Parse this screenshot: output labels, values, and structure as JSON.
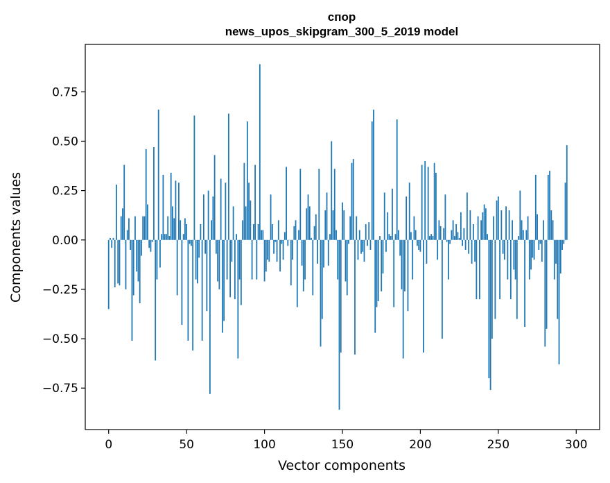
{
  "chart_data": {
    "type": "bar",
    "title": "спор",
    "subtitle": "news_upos_skipgram_300_5_2019 model",
    "xlabel": "Vector components",
    "ylabel": "Components values",
    "xlim": [
      -15,
      315
    ],
    "ylim": [
      -0.96,
      0.99
    ],
    "x_ticks": [
      0,
      50,
      100,
      150,
      200,
      250,
      300
    ],
    "y_ticks": [
      0.75,
      0.5,
      0.25,
      0.0,
      -0.25,
      -0.5,
      -0.75
    ],
    "y_tick_labels": [
      "0.75",
      "0.50",
      "0.25",
      "0.00",
      "−0.25",
      "−0.50",
      "−0.75"
    ],
    "grid": false,
    "bar_color": "#1f77b4",
    "values": [
      -0.35,
      0.01,
      -0.04,
      0.01,
      -0.24,
      0.28,
      -0.22,
      -0.23,
      0.12,
      0.16,
      0.38,
      -0.25,
      0.05,
      0.11,
      -0.05,
      -0.51,
      -0.28,
      0.12,
      -0.16,
      -0.21,
      -0.32,
      -0.08,
      0.12,
      0.12,
      0.46,
      0.18,
      -0.04,
      -0.06,
      -0.01,
      0.47,
      -0.61,
      -0.2,
      0.66,
      -0.14,
      0.03,
      0.33,
      0.03,
      0.03,
      0.12,
      0.02,
      0.34,
      0.17,
      0.11,
      0.3,
      -0.28,
      0.29,
      0.1,
      -0.43,
      0.03,
      0.11,
      0.08,
      -0.51,
      -0.02,
      -0.03,
      -0.56,
      0.63,
      -0.2,
      -0.22,
      -0.09,
      0.08,
      -0.51,
      0.23,
      -0.07,
      -0.36,
      0.25,
      -0.78,
      0.1,
      0.22,
      0.43,
      -0.07,
      -0.21,
      -0.25,
      0.31,
      -0.47,
      -0.41,
      0.29,
      -0.2,
      0.64,
      -0.29,
      -0.11,
      0.17,
      -0.3,
      0.03,
      -0.6,
      -0.2,
      -0.33,
      0.1,
      0.39,
      0.17,
      0.6,
      0.29,
      0.2,
      -0.2,
      0.08,
      0.38,
      -0.2,
      0.08,
      0.89,
      0.05,
      0.05,
      -0.21,
      -0.16,
      -0.1,
      -0.11,
      0.23,
      0.08,
      -0.07,
      -0.01,
      -0.11,
      0.1,
      -0.16,
      -0.02,
      -0.1,
      0.04,
      0.37,
      -0.03,
      0.0,
      -0.23,
      -0.1,
      0.07,
      0.1,
      -0.34,
      0.05,
      0.36,
      -0.13,
      -0.26,
      -0.2,
      0.16,
      0.23,
      0.17,
      0.01,
      -0.28,
      0.07,
      0.13,
      -0.12,
      0.36,
      -0.54,
      -0.4,
      -0.14,
      0.15,
      0.24,
      -0.13,
      0.03,
      0.5,
      0.15,
      0.36,
      0.05,
      -0.2,
      -0.86,
      -0.57,
      0.19,
      0.15,
      -0.21,
      -0.28,
      -0.02,
      0.12,
      0.39,
      0.41,
      -0.58,
      0.12,
      -0.1,
      0.05,
      -0.07,
      -0.06,
      -0.11,
      0.08,
      -0.03,
      0.09,
      -0.05,
      0.6,
      0.66,
      -0.47,
      -0.34,
      -0.31,
      0.02,
      -0.26,
      -0.17,
      0.24,
      -0.06,
      0.14,
      0.03,
      0.02,
      0.26,
      -0.34,
      0.03,
      0.61,
      0.05,
      -0.08,
      -0.25,
      -0.6,
      -0.26,
      0.22,
      -0.36,
      0.29,
      0.04,
      -0.2,
      0.12,
      0.05,
      -0.03,
      -0.05,
      -0.06,
      0.38,
      -0.57,
      0.4,
      -0.12,
      0.37,
      0.02,
      0.03,
      0.02,
      0.39,
      0.34,
      -0.1,
      0.1,
      0.07,
      -0.5,
      0.06,
      0.23,
      -0.01,
      -0.2,
      -0.02,
      0.05,
      0.1,
      0.02,
      0.08,
      0.04,
      0.01,
      0.14,
      -0.03,
      0.06,
      -0.05,
      0.24,
      -0.07,
      0.15,
      -0.12,
      0.08,
      -0.11,
      -0.3,
      0.12,
      -0.3,
      0.1,
      0.14,
      0.18,
      0.16,
      0.03,
      -0.7,
      -0.76,
      -0.5,
      0.12,
      -0.4,
      0.2,
      0.22,
      -0.3,
      0.15,
      -0.07,
      -0.1,
      0.17,
      -0.2,
      0.15,
      -0.3,
      0.1,
      -0.15,
      -0.2,
      -0.4,
      0.02,
      0.25,
      0.1,
      0.05,
      -0.44,
      0.05,
      0.12,
      -0.2,
      -0.15,
      -0.09,
      -0.1,
      0.33,
      0.13,
      -0.05,
      -0.02,
      -0.11,
      0.1,
      -0.54,
      -0.45,
      0.33,
      0.35,
      0.15,
      0.1,
      -0.2,
      -0.12,
      -0.4,
      -0.63,
      -0.17,
      -0.05,
      -0.02,
      0.29,
      0.48
    ]
  }
}
